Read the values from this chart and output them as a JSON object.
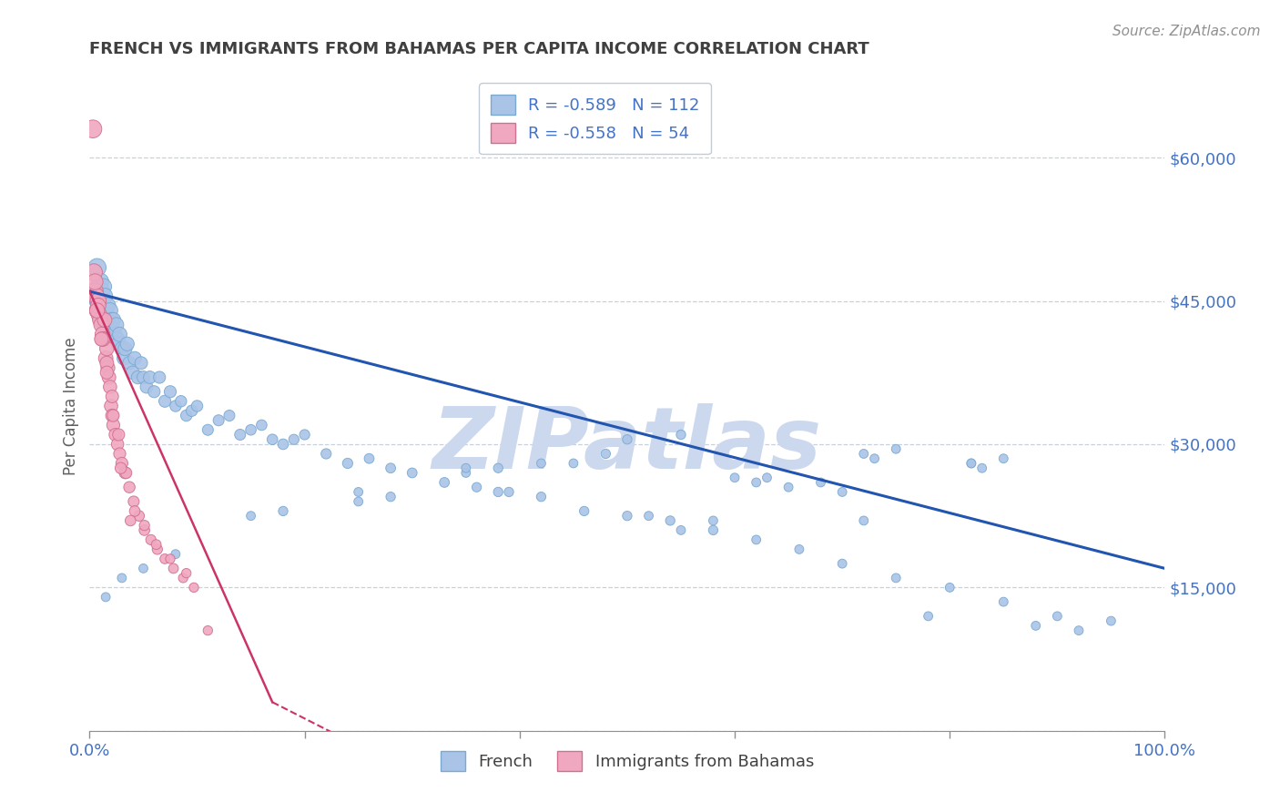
{
  "title": "FRENCH VS IMMIGRANTS FROM BAHAMAS PER CAPITA INCOME CORRELATION CHART",
  "source_text": "Source: ZipAtlas.com",
  "ylabel": "Per Capita Income",
  "watermark": "ZIPatlas",
  "french_legend": "French",
  "bahamas_legend": "Immigrants from Bahamas",
  "xlim": [
    0.0,
    1.0
  ],
  "ylim": [
    0,
    68000
  ],
  "yticks": [
    0,
    15000,
    30000,
    45000,
    60000
  ],
  "ytick_labels": [
    "",
    "$15,000",
    "$30,000",
    "$45,000",
    "$60,000"
  ],
  "xticks": [
    0.0,
    0.2,
    0.4,
    0.6,
    0.8,
    1.0
  ],
  "xtick_labels": [
    "0.0%",
    "",
    "",
    "",
    "",
    "100.0%"
  ],
  "axis_color": "#4472c4",
  "scatter_blue_color": "#aac4e8",
  "scatter_blue_edge": "#7aaad0",
  "scatter_pink_color": "#f0a8c0",
  "scatter_pink_edge": "#d07090",
  "line_blue_color": "#2255b0",
  "line_pink_color": "#cc3366",
  "title_color": "#404040",
  "source_color": "#909090",
  "watermark_color": "#ccd8ee",
  "grid_color": "#c8d0dc",
  "french_R": -0.589,
  "french_N": 112,
  "bahamas_R": -0.558,
  "bahamas_N": 54,
  "blue_line_x": [
    0.0,
    1.0
  ],
  "blue_line_y": [
    46000,
    17000
  ],
  "pink_line_x": [
    0.0,
    0.17
  ],
  "pink_line_y": [
    46000,
    3000
  ],
  "french_x": [
    0.005,
    0.007,
    0.008,
    0.009,
    0.01,
    0.011,
    0.012,
    0.013,
    0.014,
    0.015,
    0.016,
    0.017,
    0.018,
    0.019,
    0.02,
    0.021,
    0.022,
    0.023,
    0.025,
    0.026,
    0.027,
    0.028,
    0.03,
    0.032,
    0.033,
    0.035,
    0.037,
    0.04,
    0.042,
    0.045,
    0.048,
    0.05,
    0.053,
    0.056,
    0.06,
    0.065,
    0.07,
    0.075,
    0.08,
    0.085,
    0.09,
    0.095,
    0.1,
    0.11,
    0.12,
    0.13,
    0.14,
    0.15,
    0.16,
    0.17,
    0.18,
    0.19,
    0.2,
    0.22,
    0.24,
    0.26,
    0.28,
    0.3,
    0.33,
    0.36,
    0.39,
    0.42,
    0.46,
    0.5,
    0.54,
    0.58,
    0.62,
    0.66,
    0.7,
    0.75,
    0.8,
    0.85,
    0.9,
    0.95,
    0.5,
    0.62,
    0.72,
    0.82,
    0.55,
    0.48,
    0.38,
    0.28,
    0.18,
    0.38,
    0.55,
    0.65,
    0.75,
    0.85,
    0.6,
    0.7,
    0.45,
    0.35,
    0.25,
    0.15,
    0.08,
    0.05,
    0.03,
    0.015,
    0.25,
    0.42,
    0.58,
    0.68,
    0.78,
    0.88,
    0.92,
    0.35,
    0.52,
    0.72,
    0.82,
    0.63,
    0.73,
    0.83
  ],
  "french_y": [
    46000,
    48500,
    45000,
    44000,
    47000,
    46000,
    44500,
    46500,
    45500,
    44000,
    43000,
    44500,
    42500,
    44000,
    43000,
    42000,
    43000,
    41500,
    42500,
    41000,
    40500,
    41500,
    40000,
    39000,
    40000,
    40500,
    38500,
    37500,
    39000,
    37000,
    38500,
    37000,
    36000,
    37000,
    35500,
    37000,
    34500,
    35500,
    34000,
    34500,
    33000,
    33500,
    34000,
    31500,
    32500,
    33000,
    31000,
    31500,
    32000,
    30500,
    30000,
    30500,
    31000,
    29000,
    28000,
    28500,
    27500,
    27000,
    26000,
    25500,
    25000,
    24500,
    23000,
    22500,
    22000,
    21000,
    20000,
    19000,
    17500,
    16000,
    15000,
    13500,
    12000,
    11500,
    30500,
    26000,
    22000,
    28000,
    31000,
    29000,
    25000,
    24500,
    23000,
    27500,
    21000,
    25500,
    29500,
    28500,
    26500,
    25000,
    28000,
    27000,
    24000,
    22500,
    18500,
    17000,
    16000,
    14000,
    25000,
    28000,
    22000,
    26000,
    12000,
    11000,
    10500,
    27500,
    22500,
    29000,
    28000,
    26500,
    28500,
    27500
  ],
  "french_s": [
    200,
    200,
    200,
    200,
    180,
    180,
    160,
    160,
    160,
    160,
    150,
    150,
    150,
    150,
    140,
    140,
    140,
    140,
    130,
    130,
    130,
    130,
    120,
    120,
    120,
    120,
    110,
    110,
    110,
    110,
    100,
    100,
    100,
    100,
    90,
    90,
    90,
    90,
    80,
    80,
    80,
    80,
    80,
    75,
    75,
    75,
    75,
    70,
    70,
    70,
    70,
    65,
    65,
    65,
    65,
    60,
    60,
    60,
    60,
    55,
    55,
    55,
    55,
    55,
    55,
    55,
    50,
    50,
    50,
    50,
    50,
    50,
    50,
    50,
    55,
    50,
    50,
    50,
    55,
    55,
    55,
    55,
    55,
    55,
    50,
    50,
    50,
    50,
    50,
    50,
    50,
    50,
    50,
    50,
    50,
    50,
    50,
    50,
    50,
    50,
    50,
    50,
    50,
    50,
    50,
    50,
    50,
    50,
    50,
    50,
    50,
    50
  ],
  "bahamas_x": [
    0.003,
    0.004,
    0.005,
    0.006,
    0.007,
    0.008,
    0.009,
    0.01,
    0.011,
    0.012,
    0.013,
    0.014,
    0.015,
    0.016,
    0.017,
    0.018,
    0.019,
    0.02,
    0.021,
    0.022,
    0.024,
    0.026,
    0.028,
    0.03,
    0.033,
    0.037,
    0.041,
    0.046,
    0.051,
    0.057,
    0.063,
    0.07,
    0.078,
    0.087,
    0.097,
    0.11,
    0.005,
    0.008,
    0.012,
    0.016,
    0.021,
    0.027,
    0.034,
    0.042,
    0.051,
    0.062,
    0.075,
    0.09,
    0.007,
    0.011,
    0.016,
    0.022,
    0.029,
    0.038
  ],
  "bahamas_y": [
    63000,
    48000,
    46000,
    45500,
    44000,
    45000,
    43500,
    43000,
    42500,
    41500,
    41000,
    43000,
    39000,
    40000,
    38000,
    37000,
    36000,
    34000,
    33000,
    32000,
    31000,
    30000,
    29000,
    28000,
    27000,
    25500,
    24000,
    22500,
    21000,
    20000,
    19000,
    18000,
    17000,
    16000,
    15000,
    10500,
    47000,
    44500,
    41000,
    38500,
    35000,
    31000,
    27000,
    23000,
    21500,
    19500,
    18000,
    16500,
    44000,
    41000,
    37500,
    33000,
    27500,
    22000
  ],
  "bahamas_s": [
    200,
    180,
    170,
    170,
    160,
    160,
    155,
    150,
    145,
    140,
    135,
    130,
    130,
    125,
    120,
    115,
    110,
    110,
    105,
    105,
    100,
    95,
    90,
    90,
    85,
    80,
    75,
    70,
    70,
    65,
    65,
    60,
    60,
    55,
    55,
    55,
    160,
    145,
    130,
    115,
    100,
    90,
    80,
    70,
    65,
    60,
    55,
    55,
    140,
    120,
    105,
    90,
    80,
    70
  ]
}
